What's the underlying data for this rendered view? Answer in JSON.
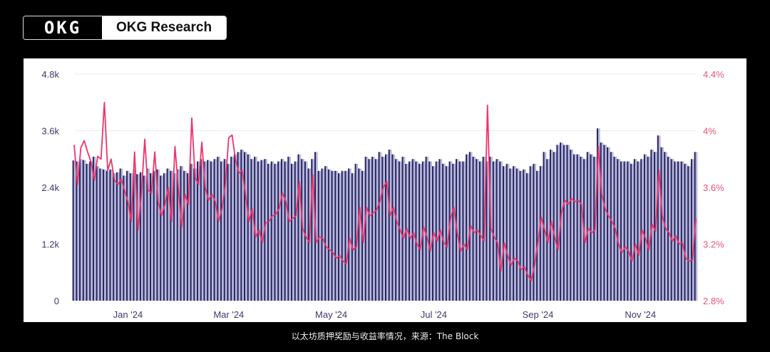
{
  "brand": {
    "logo_text": "OKG",
    "name": "OKG Research"
  },
  "caption": "以太坊质押奖励与收益率情况，来源：The Block",
  "chart_data": {
    "type": "bar+line",
    "title": "",
    "xlim": [
      "2023-11-30",
      "2024-12-04"
    ],
    "x_ticks": [
      {
        "label": "Jan '24",
        "date": "2024-01-01"
      },
      {
        "label": "Mar '24",
        "date": "2024-03-01"
      },
      {
        "label": "May '24",
        "date": "2024-05-01"
      },
      {
        "label": "Jul '24",
        "date": "2024-07-01"
      },
      {
        "label": "Sep '24",
        "date": "2024-09-01"
      },
      {
        "label": "Nov '24",
        "date": "2024-11-01"
      }
    ],
    "y_left": {
      "ylim": [
        0,
        4800
      ],
      "ticks": [
        0,
        1200,
        2400,
        3600,
        4800
      ],
      "tick_labels": [
        "0",
        "1.2k",
        "2.4k",
        "3.6k",
        "4.8k"
      ],
      "color": "#3a3a6a"
    },
    "y_right": {
      "ylim": [
        2.8,
        4.4
      ],
      "ticks": [
        2.8,
        3.2,
        3.6,
        4.0,
        4.4
      ],
      "tick_labels": [
        "2.8%",
        "3.2%",
        "3.6%",
        "4%",
        "4.4%"
      ],
      "color": "#e8547a"
    },
    "grid": true,
    "colors": {
      "bar": "#25245e",
      "bar_fill": "#b9b9dd",
      "line": "#f0336a"
    },
    "series": [
      {
        "type": "bar",
        "axis": "left",
        "values": [
          2970,
          2950,
          3000,
          2980,
          2900,
          2950,
          3050,
          2850,
          2800,
          2780,
          2750,
          2780,
          2700,
          2720,
          2800,
          2650,
          2750,
          2700,
          2780,
          2680,
          2720,
          2650,
          2800,
          2700,
          2750,
          2780,
          2650,
          2700,
          2800,
          2750,
          2700,
          2780,
          2850,
          2750,
          2700,
          2900,
          2800,
          2950,
          3000,
          2950,
          2980,
          2950,
          3000,
          3050,
          2950,
          3000,
          2900,
          3050,
          3100,
          3150,
          3200,
          3150,
          3100,
          3000,
          3050,
          2950,
          2980,
          3000,
          2900,
          2950,
          2900,
          2950,
          3000,
          2950,
          3050,
          2900,
          2950,
          3100,
          3000,
          2950,
          2800,
          3000,
          3150,
          2750,
          2800,
          2850,
          2780,
          2750,
          2750,
          2700,
          2750,
          2750,
          2800,
          2700,
          2900,
          2800,
          2750,
          3050,
          3000,
          3050,
          3000,
          3150,
          3050,
          3100,
          3200,
          3100,
          3000,
          2950,
          3050,
          2900,
          2950,
          3000,
          2950,
          2900,
          2950,
          3050,
          2950,
          2850,
          2950,
          3000,
          2900,
          2850,
          2950,
          2900,
          3000,
          2950,
          2950,
          3100,
          3150,
          3050,
          3000,
          2950,
          3050,
          2950,
          3050,
          2950,
          3000,
          2950,
          2850,
          2900,
          2800,
          2850,
          2800,
          2750,
          2780,
          2700,
          2850,
          2900,
          2750,
          2850,
          3150,
          3000,
          3200,
          3150,
          3300,
          3350,
          3300,
          3300,
          3200,
          3100,
          3100,
          3050,
          3000,
          3150,
          3100,
          3050,
          3650,
          3350,
          3300,
          3250,
          3150,
          3050,
          3000,
          2950,
          2950,
          2950,
          2900,
          3000,
          2950,
          3000,
          3100,
          3050,
          3200,
          3150,
          3500,
          3250,
          3150,
          3050,
          3000,
          2950,
          2950,
          2950,
          2900,
          2850,
          3000,
          3150
        ]
      },
      {
        "type": "line",
        "axis": "right",
        "values": [
          3.9,
          3.62,
          3.88,
          3.93,
          3.85,
          3.78,
          3.65,
          3.82,
          3.8,
          4.2,
          3.72,
          3.8,
          3.65,
          3.62,
          3.66,
          3.58,
          3.5,
          3.36,
          3.85,
          3.3,
          3.55,
          3.94,
          3.58,
          3.56,
          3.85,
          3.5,
          3.4,
          3.48,
          3.6,
          3.36,
          3.89,
          3.6,
          3.32,
          3.55,
          3.48,
          4.09,
          3.67,
          3.62,
          3.92,
          3.6,
          3.51,
          3.55,
          3.5,
          3.36,
          3.45,
          3.62,
          3.95,
          3.97,
          3.8,
          3.7,
          3.72,
          3.55,
          3.36,
          3.45,
          3.25,
          3.3,
          3.21,
          3.35,
          3.36,
          3.4,
          3.41,
          3.45,
          3.56,
          3.5,
          3.36,
          3.38,
          3.4,
          3.64,
          3.31,
          3.25,
          3.21,
          3.69,
          3.21,
          3.25,
          3.24,
          3.18,
          3.16,
          3.14,
          3.1,
          3.12,
          3.08,
          3.06,
          3.24,
          3.16,
          3.18,
          3.46,
          3.21,
          3.46,
          3.4,
          3.42,
          3.44,
          3.5,
          3.6,
          3.64,
          3.4,
          3.46,
          3.36,
          3.3,
          3.24,
          3.31,
          3.24,
          3.28,
          3.2,
          3.16,
          3.32,
          3.25,
          3.15,
          3.28,
          3.22,
          3.3,
          3.21,
          3.18,
          3.38,
          3.46,
          3.28,
          3.15,
          3.2,
          3.16,
          3.33,
          3.28,
          3.3,
          3.26,
          3.22,
          4.18,
          3.31,
          3.25,
          3.21,
          3.01,
          3.21,
          3.12,
          3.05,
          3.1,
          3.08,
          3.02,
          3.04,
          2.98,
          2.94,
          3.05,
          3.21,
          3.39,
          3.3,
          3.21,
          3.36,
          3.25,
          3.16,
          3.42,
          3.51,
          3.48,
          3.52,
          3.5,
          3.51,
          3.48,
          3.21,
          3.31,
          3.28,
          3.3,
          3.89,
          3.55,
          3.45,
          3.4,
          3.36,
          3.31,
          3.2,
          3.14,
          3.18,
          3.15,
          3.08,
          3.2,
          3.12,
          3.3,
          3.24,
          3.16,
          3.34,
          3.29,
          3.72,
          3.4,
          3.31,
          3.28,
          3.22,
          3.26,
          3.2,
          3.21,
          3.1,
          3.08,
          3.09,
          3.38
        ]
      }
    ]
  }
}
